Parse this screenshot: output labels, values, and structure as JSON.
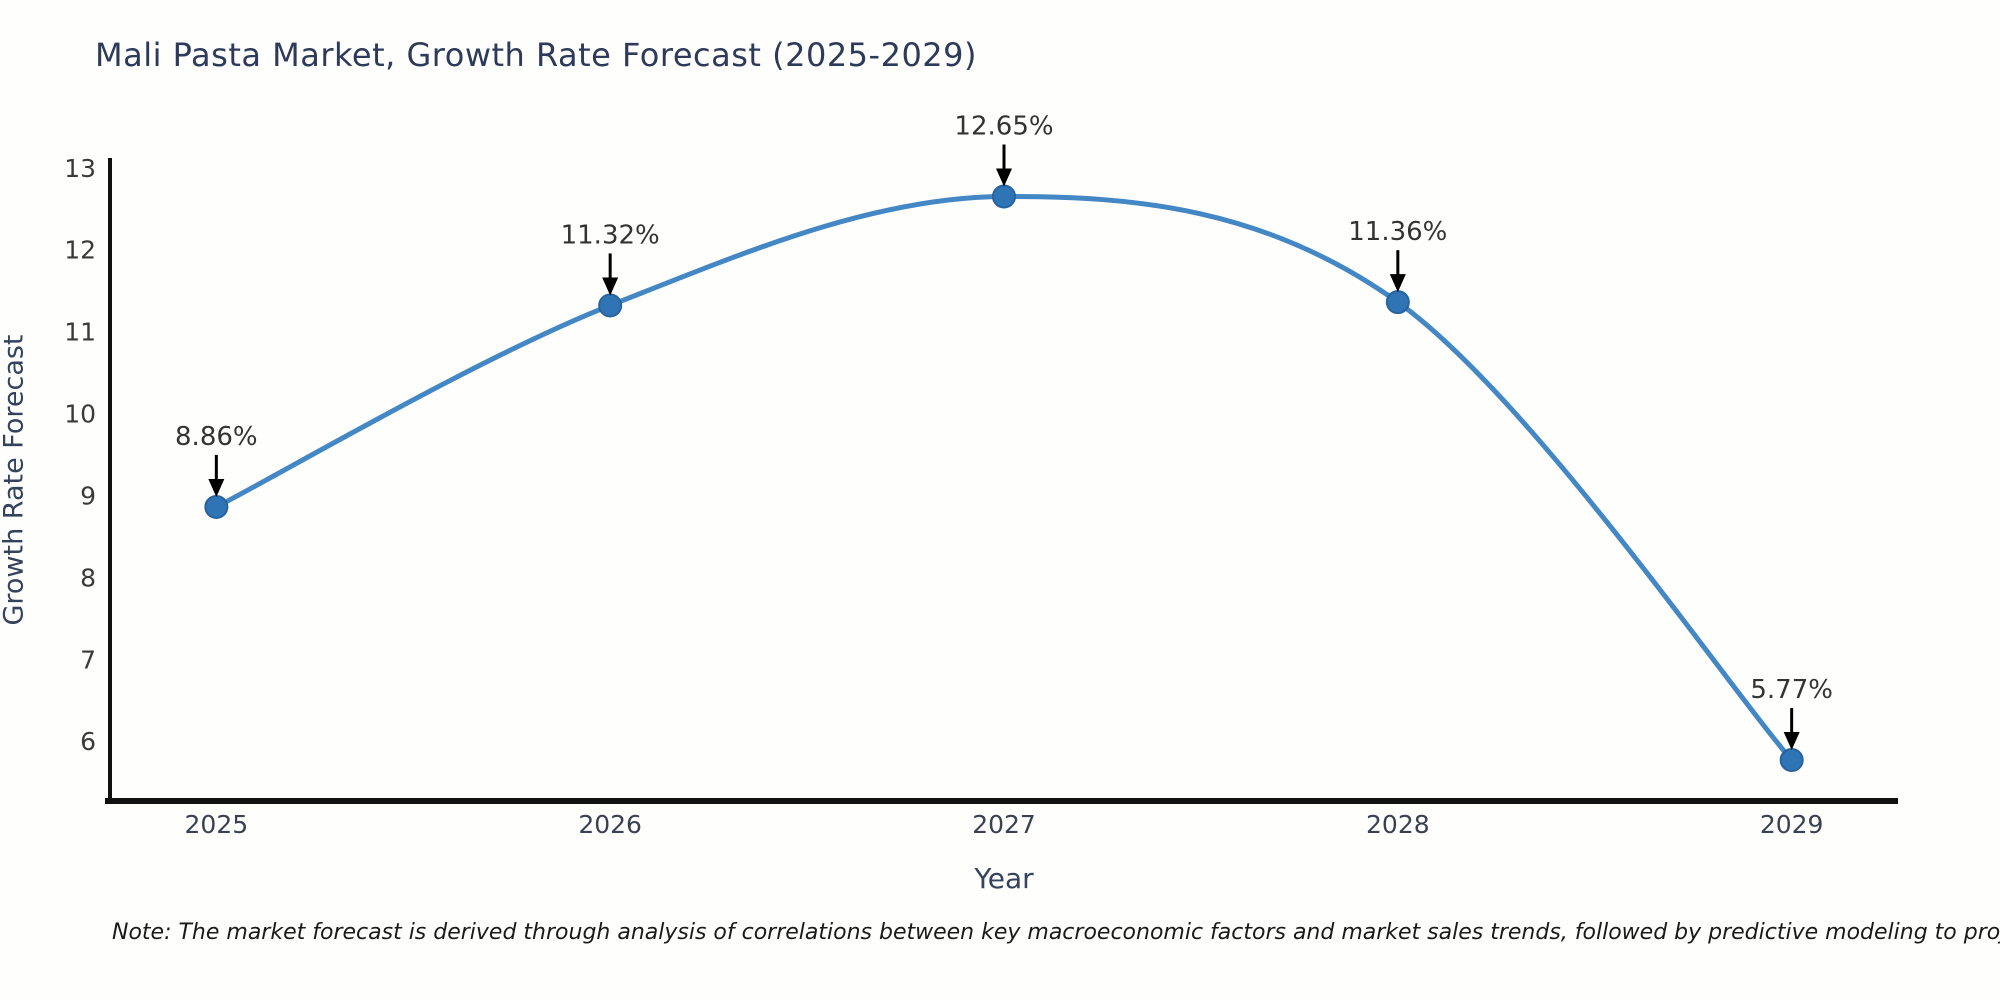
{
  "header": {
    "title": "Mali Pasta Market, Growth Rate Forecast (2025-2029)"
  },
  "chart_data": {
    "type": "line",
    "title": "Mali Pasta Market, Growth Rate Forecast (2025-2029)",
    "xlabel": "Year",
    "ylabel": "Growth Rate Forecast",
    "x": [
      2025,
      2026,
      2027,
      2028,
      2029
    ],
    "values": [
      8.86,
      11.32,
      12.65,
      11.36,
      5.77
    ],
    "point_labels": [
      "8.86%",
      "11.32%",
      "12.65%",
      "11.36%",
      "5.77%"
    ],
    "yticks": [
      6,
      7,
      8,
      9,
      10,
      11,
      12,
      13
    ],
    "ylim": [
      5.27,
      13.12
    ],
    "grid": false,
    "legend_position": "none",
    "line_color": "#4487c5",
    "marker_color": "#2f74b4",
    "marker_edge_color": "#27639c",
    "axis_color": "#111111",
    "annotation_color": "#333333",
    "annotation_arrow_color": "#000000"
  },
  "note": {
    "text": "Note: The market forecast is derived through analysis of correlations between key macroeconomic factors and market sales trends, followed by predictive modeling to project future sales"
  }
}
